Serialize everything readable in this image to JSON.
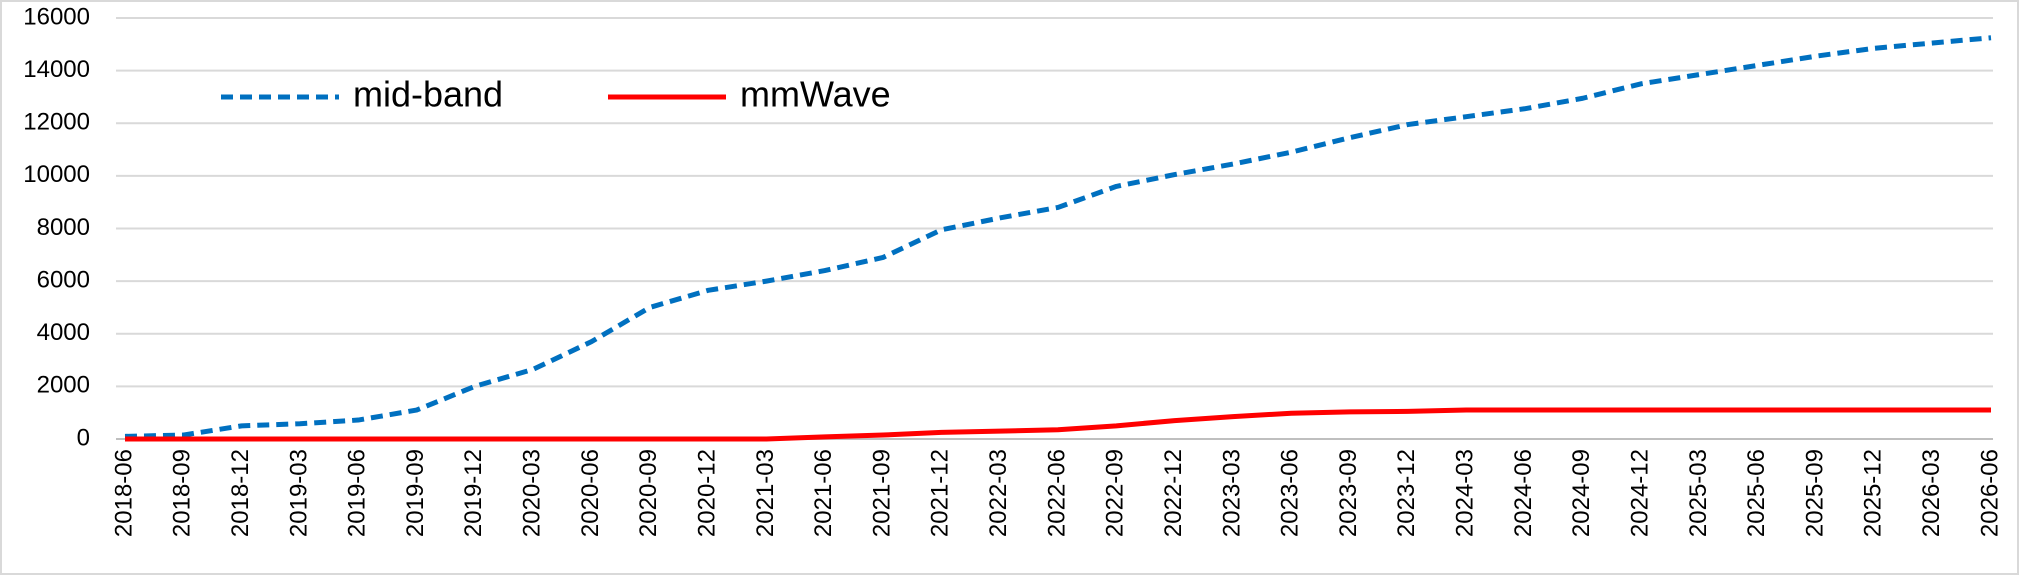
{
  "chart_data": {
    "type": "line",
    "categories": [
      "2018-06",
      "2018-09",
      "2018-12",
      "2019-03",
      "2019-06",
      "2019-09",
      "2019-12",
      "2020-03",
      "2020-06",
      "2020-09",
      "2020-12",
      "2021-03",
      "2021-06",
      "2021-09",
      "2021-12",
      "2022-03",
      "2022-06",
      "2022-09",
      "2022-12",
      "2023-03",
      "2023-06",
      "2023-09",
      "2023-12",
      "2024-03",
      "2024-06",
      "2024-09",
      "2024-12",
      "2025-03",
      "2025-06",
      "2025-09",
      "2025-12",
      "2026-03",
      "2026-06"
    ],
    "series": [
      {
        "name": "mid-band",
        "color": "#0070c0",
        "dash": true,
        "values": [
          100,
          150,
          500,
          580,
          720,
          1100,
          2000,
          2650,
          3700,
          5000,
          5650,
          6000,
          6400,
          6900,
          7950,
          8400,
          8800,
          9600,
          10050,
          10450,
          10900,
          11450,
          11950,
          12250,
          12550,
          12950,
          13500,
          13850,
          14200,
          14550,
          14850,
          15050,
          15250
        ]
      },
      {
        "name": "mmWave",
        "color": "#ff0000",
        "dash": false,
        "values": [
          0,
          0,
          0,
          0,
          0,
          0,
          0,
          0,
          0,
          0,
          0,
          0,
          80,
          150,
          250,
          300,
          350,
          500,
          700,
          850,
          980,
          1030,
          1050,
          1100,
          1100,
          1100,
          1100,
          1100,
          1100,
          1100,
          1100,
          1100,
          1100
        ]
      }
    ],
    "ylim": [
      0,
      16000
    ],
    "yticks": [
      0,
      2000,
      4000,
      6000,
      8000,
      10000,
      12000,
      14000,
      16000
    ],
    "grid": true,
    "legend": "top-left"
  }
}
